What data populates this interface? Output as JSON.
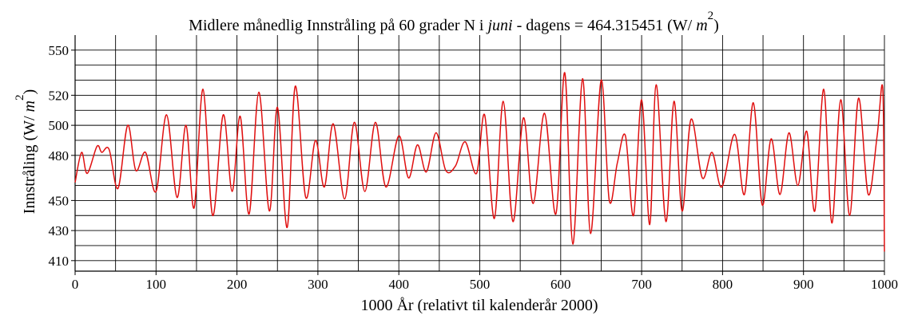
{
  "chart_data": {
    "type": "line",
    "title": {
      "prefix": "Midlere månedlig Innstråling på 60 grader N i ",
      "month": "juni",
      "suffix": " - dagens = 464.315451 (W/ ",
      "unit_var": "m",
      "exponent": "2",
      "close": ")"
    },
    "xlabel": "1000 År (relativt til kalenderår 2000)",
    "ylabel": {
      "text": "Innstråling  (W/ ",
      "unit_var": "m",
      "exponent": "2",
      "close": ")"
    },
    "xlim": [
      0,
      1000
    ],
    "ylim": [
      403,
      560
    ],
    "x_ticks": [
      0,
      100,
      200,
      300,
      400,
      500,
      600,
      700,
      800,
      900,
      1000
    ],
    "y_ticks": [
      410,
      430,
      450,
      480,
      500,
      520,
      550
    ],
    "grid": true,
    "series_color": "#e01010",
    "series": [
      {
        "x": [
          0,
          8,
          15,
          27,
          33,
          42,
          53,
          65,
          75,
          87,
          100,
          113,
          126,
          137,
          147,
          158,
          170,
          183,
          194,
          204,
          215,
          227,
          240,
          250,
          262,
          272,
          285,
          297,
          308,
          319,
          333,
          345,
          358,
          371,
          384,
          400,
          412,
          423,
          434,
          446,
          458,
          470,
          482,
          496,
          506,
          518,
          529,
          541,
          554,
          566,
          580,
          594,
          605,
          615,
          627,
          637,
          650,
          660,
          670,
          680,
          690,
          700,
          710,
          718,
          730,
          740,
          750,
          761,
          775,
          787,
          799,
          815,
          827,
          838,
          849,
          860,
          871,
          882,
          893,
          904,
          914,
          925,
          935,
          946,
          957,
          968,
          980,
          991,
          998,
          1000
        ],
        "values": [
          462,
          482,
          468,
          486,
          482,
          484,
          458,
          500,
          470,
          482,
          456,
          507,
          452,
          500,
          445,
          524,
          440,
          507,
          456,
          506,
          441,
          522,
          443,
          512,
          432,
          526,
          452,
          490,
          459,
          501,
          451,
          502,
          456,
          502,
          459,
          493,
          465,
          487,
          469,
          495,
          470,
          473,
          489,
          468,
          507,
          438,
          516,
          436,
          505,
          448,
          508,
          441,
          535,
          421,
          531,
          428,
          530,
          450,
          475,
          493,
          440,
          517,
          434,
          527,
          436,
          516,
          443,
          504,
          465,
          482,
          459,
          494,
          454,
          515,
          447,
          491,
          454,
          495,
          460,
          496,
          443,
          524,
          435,
          517,
          440,
          518,
          454,
          493,
          524,
          416
        ]
      }
    ]
  }
}
